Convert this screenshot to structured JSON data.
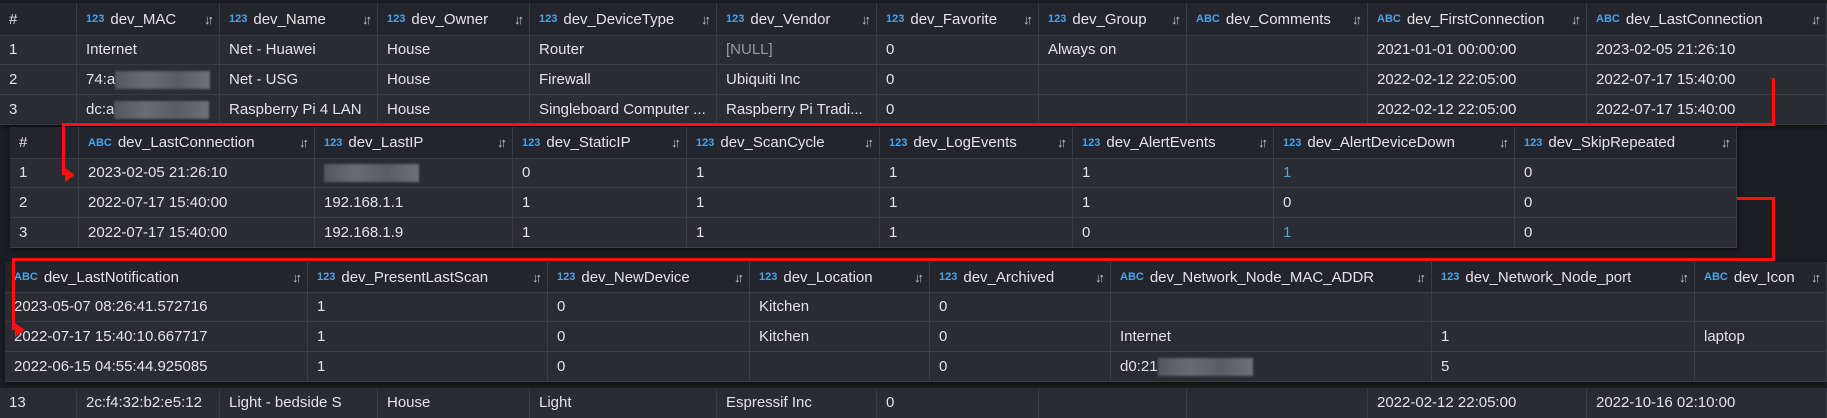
{
  "tables": [
    {
      "id": "devices-part-1",
      "columns": [
        {
          "type": "",
          "name": "#"
        },
        {
          "type": "123",
          "name": "dev_MAC"
        },
        {
          "type": "123",
          "name": "dev_Name"
        },
        {
          "type": "123",
          "name": "dev_Owner"
        },
        {
          "type": "123",
          "name": "dev_DeviceType"
        },
        {
          "type": "123",
          "name": "dev_Vendor"
        },
        {
          "type": "123",
          "name": "dev_Favorite"
        },
        {
          "type": "123",
          "name": "dev_Group"
        },
        {
          "type": "ABC",
          "name": "dev_Comments"
        },
        {
          "type": "ABC",
          "name": "dev_FirstConnection"
        },
        {
          "type": "ABC",
          "name": "dev_LastConnection"
        }
      ],
      "rows": [
        [
          "1",
          "Internet",
          "Net - Huawei",
          "House",
          "Router",
          {
            "text": "[NULL]",
            "style": "null"
          },
          "0",
          "Always on",
          "",
          "2021-01-01 00:00:00",
          "2023-02-05 21:26:10"
        ],
        [
          "2",
          {
            "text": "74:a",
            "redacted": true
          },
          "Net - USG",
          "House",
          "Firewall",
          "Ubiquiti Inc",
          "0",
          "",
          "",
          "2022-02-12 22:05:00",
          "2022-07-17 15:40:00"
        ],
        [
          "3",
          {
            "text": "dc:a",
            "redacted": true
          },
          "Raspberry Pi 4 LAN",
          "House",
          "Singleboard Computer ...",
          "Raspberry Pi Tradi...",
          "0",
          "",
          "",
          "2022-02-12 22:05:00",
          "2022-07-17 15:40:00"
        ]
      ]
    },
    {
      "id": "devices-part-2",
      "columns": [
        {
          "type": "",
          "name": "#"
        },
        {
          "type": "ABC",
          "name": "dev_LastConnection"
        },
        {
          "type": "123",
          "name": "dev_LastIP"
        },
        {
          "type": "123",
          "name": "dev_StaticIP"
        },
        {
          "type": "123",
          "name": "dev_ScanCycle"
        },
        {
          "type": "123",
          "name": "dev_LogEvents"
        },
        {
          "type": "123",
          "name": "dev_AlertEvents"
        },
        {
          "type": "123",
          "name": "dev_AlertDeviceDown"
        },
        {
          "type": "123",
          "name": "dev_SkipRepeated"
        }
      ],
      "rows": [
        [
          "1",
          "2023-02-05 21:26:10",
          {
            "text": "",
            "redacted": true
          },
          "0",
          "1",
          "1",
          "1",
          {
            "text": "1",
            "style": "blue"
          },
          "0"
        ],
        [
          "2",
          "2022-07-17 15:40:00",
          "192.168.1.1",
          "1",
          "1",
          "1",
          "1",
          "0",
          "0"
        ],
        [
          "3",
          "2022-07-17 15:40:00",
          "192.168.1.9",
          "1",
          "1",
          "1",
          "0",
          {
            "text": "1",
            "style": "blue"
          },
          "0"
        ]
      ]
    },
    {
      "id": "devices-part-3",
      "columns": [
        {
          "type": "ABC",
          "name": "dev_LastNotification"
        },
        {
          "type": "123",
          "name": "dev_PresentLastScan"
        },
        {
          "type": "123",
          "name": "dev_NewDevice"
        },
        {
          "type": "123",
          "name": "dev_Location"
        },
        {
          "type": "123",
          "name": "dev_Archived"
        },
        {
          "type": "ABC",
          "name": "dev_Network_Node_MAC_ADDR"
        },
        {
          "type": "123",
          "name": "dev_Network_Node_port"
        },
        {
          "type": "ABC",
          "name": "dev_Icon"
        }
      ],
      "rows": [
        [
          "2023-05-07 08:26:41.572716",
          "1",
          "0",
          "Kitchen",
          "0",
          "",
          "",
          ""
        ],
        [
          "2022-07-17 15:40:10.667717",
          "1",
          "0",
          "Kitchen",
          "0",
          "Internet",
          "1",
          "laptop"
        ],
        [
          "2022-06-15 04:55:44.925085",
          "1",
          "0",
          "",
          "0",
          {
            "text": "d0:21",
            "redacted": true
          },
          "5",
          ""
        ]
      ]
    }
  ],
  "background_row": [
    "13",
    "2c:f4:32:b2:e5:12",
    "Light - bedside S",
    "House",
    "Light",
    "Espressif Inc",
    "0",
    "",
    "",
    "2022-02-12 22:05:00",
    "2022-10-16 02:10:00"
  ],
  "sort_icon": "sort-arrows-icon",
  "colors": {
    "accent_type": "#4aa3e8",
    "annotation_arrow": "#ff1010",
    "table_bg": "#2a2b33",
    "header_bg": "#24252c"
  }
}
